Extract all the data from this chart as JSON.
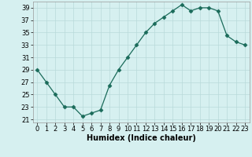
{
  "x": [
    0,
    1,
    2,
    3,
    4,
    5,
    6,
    7,
    8,
    9,
    10,
    11,
    12,
    13,
    14,
    15,
    16,
    17,
    18,
    19,
    20,
    21,
    22,
    23
  ],
  "y": [
    29,
    27,
    25,
    23,
    23,
    21.5,
    22,
    22.5,
    26.5,
    29,
    31,
    33,
    35,
    36.5,
    37.5,
    38.5,
    39.5,
    38.5,
    39,
    39,
    38.5,
    34.5,
    33.5,
    33
  ],
  "line_color": "#1a6b5a",
  "marker": "D",
  "marker_size": 2.5,
  "bg_color": "#d6f0f0",
  "grid_color": "#b8dada",
  "xlabel": "Humidex (Indice chaleur)",
  "ylim": [
    20.5,
    40
  ],
  "yticks": [
    21,
    23,
    25,
    27,
    29,
    31,
    33,
    35,
    37,
    39
  ],
  "xlim": [
    -0.5,
    23.5
  ],
  "xticks": [
    0,
    1,
    2,
    3,
    4,
    5,
    6,
    7,
    8,
    9,
    10,
    11,
    12,
    13,
    14,
    15,
    16,
    17,
    18,
    19,
    20,
    21,
    22,
    23
  ],
  "xlabel_fontsize": 7,
  "tick_fontsize": 6
}
